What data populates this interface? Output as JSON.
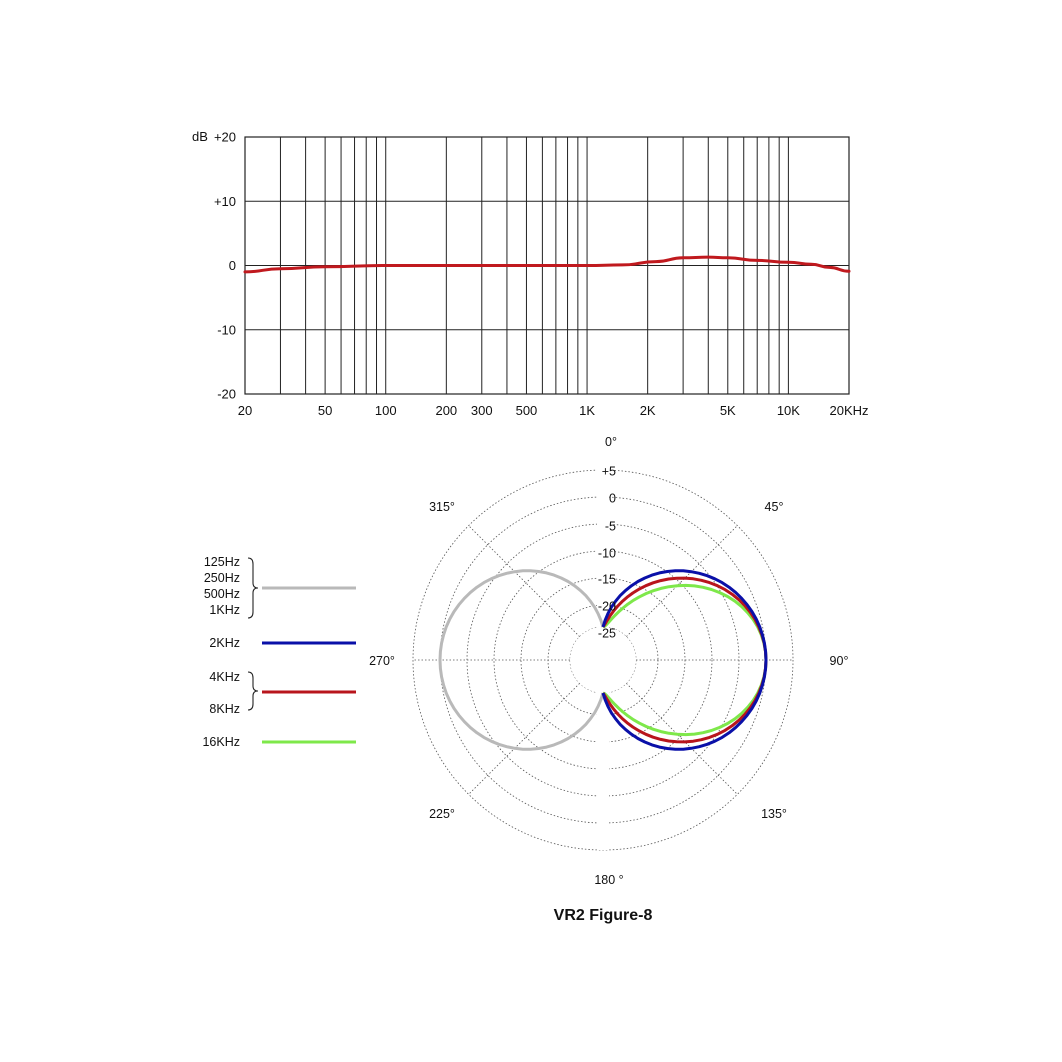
{
  "chart_data": [
    {
      "type": "line",
      "xscale": "log",
      "xlim": [
        20,
        20000
      ],
      "ylim": [
        -20,
        20
      ],
      "ylabel": "dB",
      "y_ticks": [
        {
          "v": 20,
          "label": "+20"
        },
        {
          "v": 10,
          "label": "+10"
        },
        {
          "v": 0,
          "label": "0"
        },
        {
          "v": -10,
          "label": "-10"
        },
        {
          "v": -20,
          "label": "-20"
        }
      ],
      "x_ticks": [
        {
          "v": 20,
          "label": "20"
        },
        {
          "v": 50,
          "label": "50"
        },
        {
          "v": 100,
          "label": "100"
        },
        {
          "v": 200,
          "label": "200"
        },
        {
          "v": 300,
          "label": "300"
        },
        {
          "v": 500,
          "label": "500"
        },
        {
          "v": 1000,
          "label": "1K"
        },
        {
          "v": 2000,
          "label": "2K"
        },
        {
          "v": 5000,
          "label": "5K"
        },
        {
          "v": 10000,
          "label": "10K"
        },
        {
          "v": 20000,
          "label": "20KHz"
        }
      ],
      "grid": true,
      "series": [
        {
          "color": "#c0191e",
          "x": [
            20,
            30,
            50,
            100,
            200,
            500,
            1000,
            1500,
            2200,
            3000,
            4000,
            5000,
            7000,
            10000,
            13000,
            16000,
            20000
          ],
          "y": [
            -1.0,
            -0.5,
            -0.2,
            0,
            0,
            0,
            0,
            0.1,
            0.6,
            1.2,
            1.3,
            1.2,
            0.8,
            0.5,
            0.2,
            -0.3,
            -0.9
          ]
        }
      ]
    },
    {
      "type": "polar",
      "title": "VR2 Figure-8",
      "r_range_db": [
        -25,
        5
      ],
      "radial_labels": [
        "+5",
        "0",
        "-5",
        "-10",
        "-15",
        "-20",
        "-25"
      ],
      "angle_labels": [
        {
          "angle": 0,
          "label": "0°"
        },
        {
          "angle": 45,
          "label": "45°"
        },
        {
          "angle": 90,
          "label": "90°"
        },
        {
          "angle": 135,
          "label": "135°"
        },
        {
          "angle": 180,
          "label": "180 °"
        },
        {
          "angle": 225,
          "label": "225°"
        },
        {
          "angle": 270,
          "label": "270°"
        },
        {
          "angle": 315,
          "label": "315°"
        }
      ],
      "series": [
        {
          "id": "low",
          "color": "#b9b9b9",
          "labels": [
            "125Hz",
            "250Hz",
            "500Hz",
            "1KHz"
          ],
          "side": "left",
          "exponent": 1.0
        },
        {
          "id": "2k",
          "color": "#0a10a8",
          "labels": [
            "2KHz"
          ],
          "side": "right",
          "exponent": 1.0
        },
        {
          "id": "4k8k",
          "color": "#b8151c",
          "labels": [
            "4KHz",
            "8KHz"
          ],
          "side": "right",
          "exponent": 1.3
        },
        {
          "id": "16k",
          "color": "#7ee84a",
          "labels": [
            "16KHz"
          ],
          "side": "right",
          "exponent": 1.7
        }
      ]
    }
  ]
}
